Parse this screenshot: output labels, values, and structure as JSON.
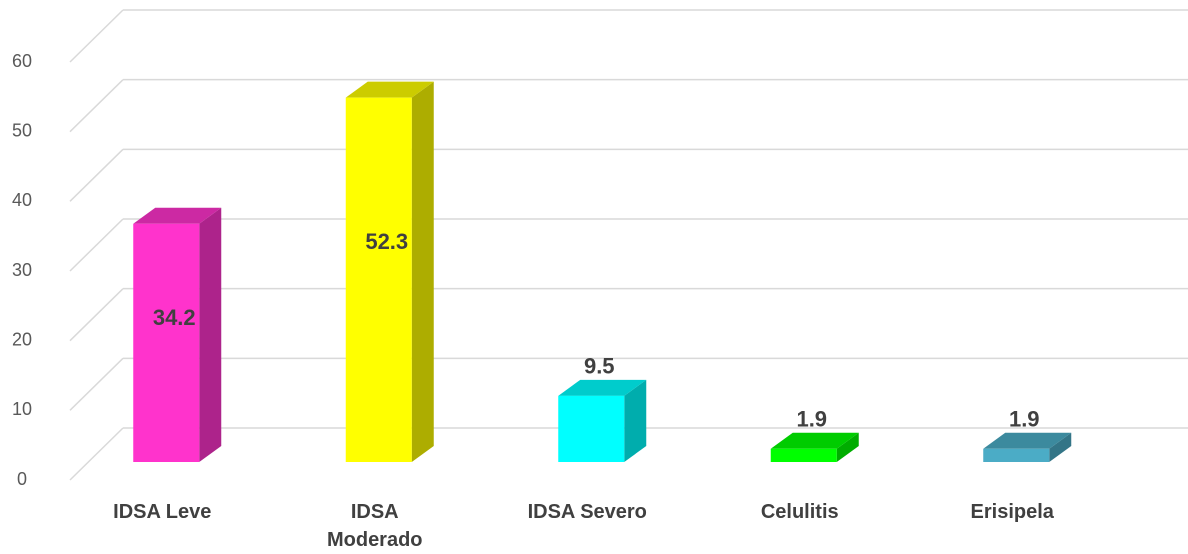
{
  "chart_data": {
    "type": "bar3d",
    "categories": [
      "IDSA Leve",
      "IDSA Moderado",
      "IDSA Severo",
      "Celulitis",
      "Erisipela"
    ],
    "values": [
      34.2,
      52.3,
      9.5,
      1.9,
      1.9
    ],
    "colors": [
      "#ff33cc",
      "#ffff00",
      "#00ffff",
      "#00ff00",
      "#4bacc6"
    ],
    "ylim": [
      0,
      60
    ],
    "yticks": [
      0,
      10,
      20,
      30,
      40,
      50,
      60
    ],
    "grid": true
  }
}
